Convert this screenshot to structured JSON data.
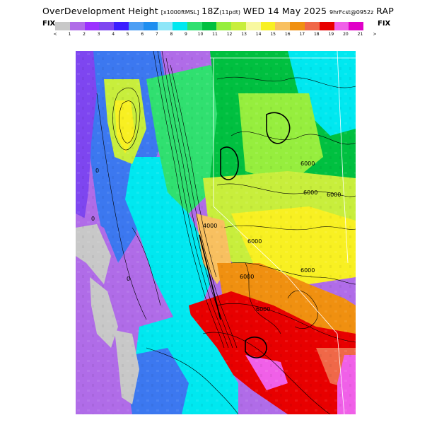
{
  "title": {
    "main_left": "OverDevelopment Height",
    "unit": "[x1000ftMSL]",
    "run": "18Z",
    "run_sub": "(11pdt)",
    "date": "WED 14 May 2025",
    "forecast": "9hrFcst@0952z",
    "model": "RAP"
  },
  "colorbar": {
    "left_label": "FIX",
    "right_label": "FIX",
    "ticks": [
      "<",
      "1",
      "2",
      "3",
      "4",
      "5",
      "6",
      "7",
      "8",
      "9",
      "10",
      "11",
      "12",
      "13",
      "14",
      "15",
      "16",
      "17",
      "18",
      "19",
      "20",
      "21",
      ">"
    ],
    "colors": [
      "#c8c8c8",
      "#b06ce8",
      "#9c32ff",
      "#7e46f0",
      "#3c1eff",
      "#4c9ef4",
      "#1e8ef0",
      "#8ee6f8",
      "#00e8f0",
      "#30e070",
      "#00c040",
      "#96ee3e",
      "#c8ee3c",
      "#f8f8a0",
      "#f8f022",
      "#f8c060",
      "#f09010",
      "#f06848",
      "#e80000",
      "#f060e8",
      "#e000c8"
    ]
  },
  "map": {
    "contour_labels": [
      "6000",
      "6000",
      "6000",
      "6000",
      "6000",
      "6000",
      "6000",
      "4000",
      "0",
      "0",
      "0"
    ]
  }
}
